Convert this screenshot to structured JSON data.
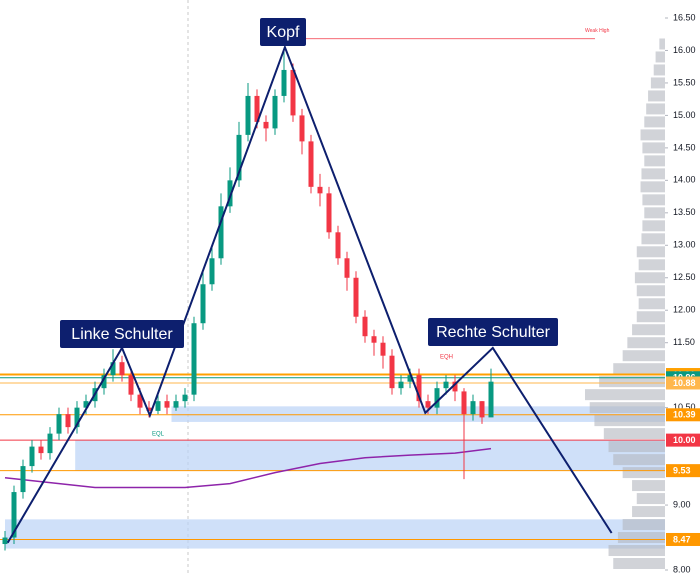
{
  "chart_data": {
    "type": "candlestick",
    "ylim": [
      8.0,
      16.5
    ],
    "yticks": [
      {
        "value": 16.5,
        "label": "16.50"
      },
      {
        "value": 16.0,
        "label": "16.00"
      },
      {
        "value": 15.5,
        "label": "15.50"
      },
      {
        "value": 15.0,
        "label": "15.00"
      },
      {
        "value": 14.5,
        "label": "14.50"
      },
      {
        "value": 14.0,
        "label": "14.00"
      },
      {
        "value": 13.5,
        "label": "13.50"
      },
      {
        "value": 13.0,
        "label": "13.00"
      },
      {
        "value": 12.5,
        "label": "12.50"
      },
      {
        "value": 12.0,
        "label": "12.00"
      },
      {
        "value": 11.5,
        "label": "11.50"
      },
      {
        "value": 10.5,
        "label": "10.50"
      },
      {
        "value": 9.0,
        "label": "9.00"
      },
      {
        "value": 8.0,
        "label": "8.00"
      }
    ],
    "up_color": "#089981",
    "down_color": "#f23645",
    "candles": {
      "open": [
        8.4,
        8.5,
        9.2,
        9.6,
        9.9,
        9.8,
        10.1,
        10.4,
        10.2,
        10.5,
        10.6,
        10.8,
        11.0,
        11.2,
        11.0,
        10.7,
        10.5,
        10.45,
        10.6,
        10.5,
        10.6,
        10.7,
        11.8,
        12.4,
        12.8,
        13.6,
        14.0,
        14.7,
        15.3,
        14.9,
        14.8,
        15.3,
        15.7,
        15.0,
        14.6,
        13.9,
        13.8,
        13.2,
        12.8,
        12.5,
        11.9,
        11.6,
        11.5,
        11.3,
        10.8,
        10.9,
        11.0,
        10.6,
        10.5,
        10.8,
        10.9,
        10.75,
        10.4,
        10.6,
        10.35
      ],
      "high": [
        8.6,
        9.3,
        9.7,
        10.0,
        10.0,
        10.2,
        10.5,
        10.5,
        10.6,
        10.7,
        10.9,
        11.1,
        11.4,
        11.3,
        11.1,
        10.8,
        10.6,
        10.7,
        10.7,
        10.7,
        10.8,
        11.9,
        12.6,
        13.0,
        13.8,
        14.2,
        14.9,
        15.5,
        15.4,
        15.0,
        15.4,
        16.0,
        15.8,
        15.1,
        14.7,
        14.1,
        13.9,
        13.3,
        12.9,
        12.6,
        12.0,
        11.7,
        11.6,
        11.4,
        11.0,
        11.1,
        11.1,
        10.7,
        10.9,
        11.0,
        11.0,
        10.8,
        10.7,
        10.6,
        11.1
      ],
      "low": [
        8.3,
        8.4,
        9.1,
        9.5,
        9.7,
        9.7,
        10.0,
        10.1,
        10.1,
        10.4,
        10.5,
        10.7,
        10.9,
        10.9,
        10.6,
        10.4,
        10.35,
        10.4,
        10.4,
        10.45,
        10.5,
        10.6,
        11.7,
        12.3,
        12.7,
        13.5,
        13.9,
        14.6,
        14.8,
        14.6,
        14.7,
        15.2,
        14.9,
        14.4,
        13.8,
        13.6,
        13.1,
        12.7,
        12.3,
        11.8,
        11.5,
        11.3,
        11.1,
        10.7,
        10.7,
        10.8,
        10.5,
        10.4,
        10.4,
        10.7,
        10.6,
        9.4,
        10.3,
        10.25,
        10.6
      ],
      "close": [
        8.5,
        9.2,
        9.6,
        9.9,
        9.8,
        10.1,
        10.4,
        10.2,
        10.5,
        10.6,
        10.8,
        11.0,
        11.2,
        11.0,
        10.7,
        10.5,
        10.45,
        10.6,
        10.5,
        10.6,
        10.7,
        11.8,
        12.4,
        12.8,
        13.6,
        14.0,
        14.7,
        15.3,
        14.9,
        14.8,
        15.3,
        15.7,
        15.0,
        14.6,
        13.9,
        13.8,
        13.2,
        12.8,
        12.5,
        11.9,
        11.6,
        11.5,
        11.3,
        10.8,
        10.9,
        11.0,
        10.6,
        10.5,
        10.8,
        10.9,
        10.75,
        10.4,
        10.6,
        10.35,
        10.9
      ]
    },
    "pattern": {
      "color": "#0d1f6e",
      "x": [
        0.3,
        13,
        16.1,
        31.1,
        46.7,
        54.2,
        67.4
      ],
      "y": [
        8.42,
        11.42,
        10.38,
        16.05,
        10.42,
        11.42,
        8.57
      ]
    },
    "moving_average": {
      "color": "#8e24aa",
      "x": [
        0,
        10,
        20,
        25,
        30,
        35,
        40,
        45,
        50,
        54
      ],
      "values": [
        9.42,
        9.27,
        9.27,
        9.33,
        9.5,
        9.64,
        9.73,
        9.77,
        9.8,
        9.87
      ]
    },
    "zone_color": "#bbd3f7",
    "zones": [
      {
        "start": 18.5,
        "low": 10.28,
        "high": 10.52
      },
      {
        "start": 7.8,
        "low": 9.53,
        "high": 10.0
      },
      {
        "start": 0,
        "low": 8.33,
        "high": 8.78
      }
    ],
    "levels": [
      {
        "value": 11.01,
        "color": "#ffa000"
      },
      {
        "value": 10.96,
        "color": "#089981"
      },
      {
        "value": 10.88,
        "color": "#ffb74d"
      },
      {
        "value": 10.39,
        "color": "#ff9800"
      },
      {
        "value": 10.0,
        "label": "10.00",
        "color": "#f23645"
      },
      {
        "value": 9.53,
        "color": "#ff9800"
      },
      {
        "value": 8.47,
        "color": "#ff9800"
      }
    ],
    "weak_high": {
      "value": 16.18,
      "label": "Weak High",
      "color": "#f23645"
    },
    "volume_profile": {
      "color": "#b2b5be",
      "prices": [
        8.1,
        8.3,
        8.5,
        8.7,
        8.9,
        9.1,
        9.3,
        9.5,
        9.7,
        9.9,
        10.1,
        10.3,
        10.5,
        10.7,
        10.9,
        11.1,
        11.3,
        11.5,
        11.7,
        11.9,
        12.1,
        12.3,
        12.5,
        12.7,
        12.9,
        13.1,
        13.3,
        13.5,
        13.7,
        13.9,
        14.1,
        14.3,
        14.5,
        14.7,
        14.9,
        15.1,
        15.3,
        15.5,
        15.7,
        15.9,
        16.1
      ],
      "volumes": [
        55,
        60,
        50,
        45,
        35,
        30,
        35,
        45,
        55,
        60,
        65,
        75,
        80,
        85,
        70,
        55,
        45,
        40,
        35,
        30,
        28,
        30,
        32,
        28,
        30,
        25,
        24,
        22,
        24,
        26,
        25,
        22,
        24,
        26,
        22,
        20,
        18,
        15,
        12,
        10,
        6
      ]
    },
    "annotations": {
      "head": "Kopf",
      "left_shoulder": "Linke Schulter",
      "right_shoulder": "Rechte Schulter",
      "eqh": "EQH",
      "eql": "EQL"
    }
  }
}
